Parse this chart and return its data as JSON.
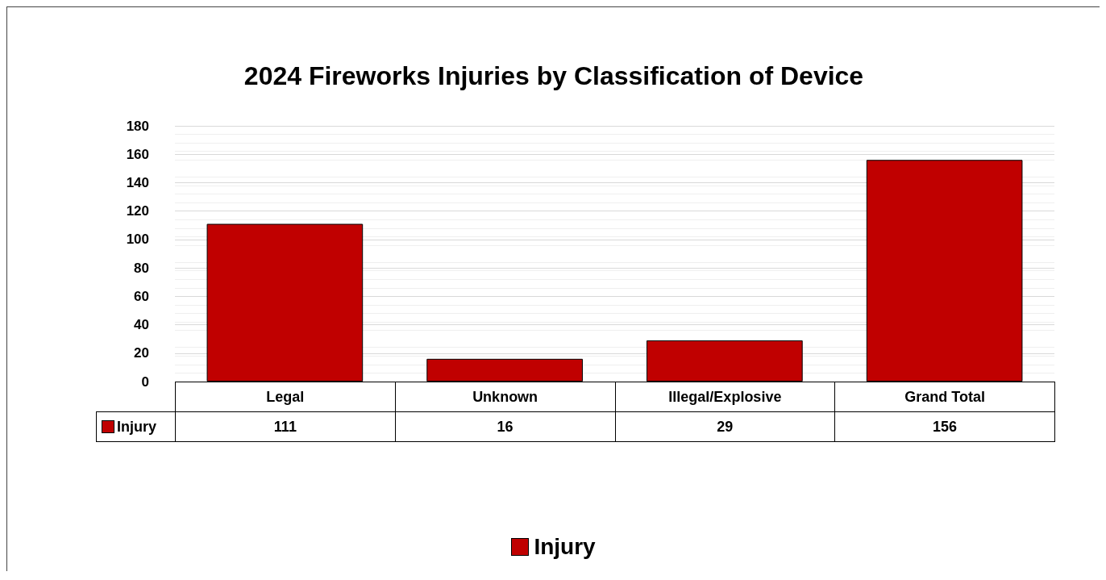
{
  "chart_data": {
    "type": "bar",
    "title": "2024 Fireworks Injuries by Classification of Device",
    "categories": [
      "Legal",
      "Unknown",
      "Illegal/Explosive",
      "Grand Total"
    ],
    "series": [
      {
        "name": "Injury",
        "color": "#c00000",
        "values": [
          111,
          16,
          29,
          156
        ]
      }
    ],
    "ylim": [
      0,
      180
    ],
    "yticks": [
      0,
      20,
      40,
      60,
      80,
      100,
      120,
      140,
      160,
      180
    ],
    "grid": "y",
    "legend": "bottom",
    "data_labels": true
  }
}
